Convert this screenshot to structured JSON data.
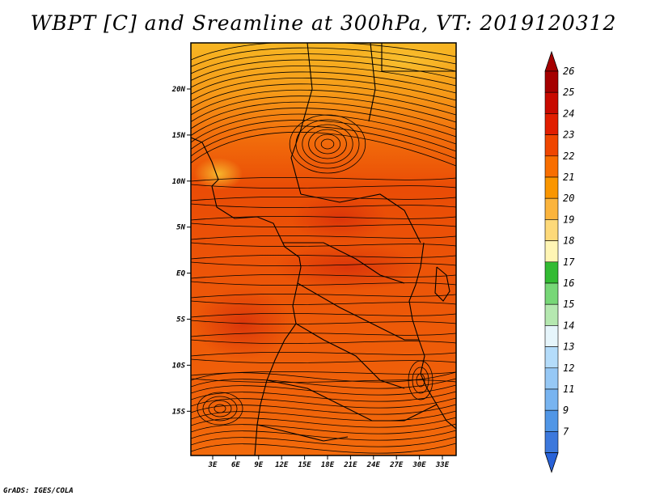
{
  "title": "WBPT [C] and Sreamline at 300hPa, VT: 2019120312",
  "credit": "GrADS: IGES/COLA",
  "lat_ticks": [
    "20N",
    "15N",
    "10N",
    "5N",
    "EQ",
    "5S",
    "10S",
    "15S"
  ],
  "lon_ticks": [
    "3E",
    "6E",
    "9E",
    "12E",
    "15E",
    "18E",
    "21E",
    "24E",
    "27E",
    "30E",
    "33E"
  ],
  "colorbar": {
    "levels": [
      {
        "label": "26",
        "color": "#a50000"
      },
      {
        "label": "25",
        "color": "#c80a00"
      },
      {
        "label": "24",
        "color": "#e11e00"
      },
      {
        "label": "23",
        "color": "#ef4600"
      },
      {
        "label": "22",
        "color": "#f86e00"
      },
      {
        "label": "21",
        "color": "#fa9600"
      },
      {
        "label": "20",
        "color": "#fbb43c"
      },
      {
        "label": "19",
        "color": "#fdd979"
      },
      {
        "label": "18",
        "color": "#fff5b4"
      },
      {
        "label": "17",
        "color": "#33bb33"
      },
      {
        "label": "16",
        "color": "#77d777"
      },
      {
        "label": "15",
        "color": "#b5e8b0"
      },
      {
        "label": "14",
        "color": "#e6f5fb"
      },
      {
        "label": "13",
        "color": "#b4dcfa"
      },
      {
        "label": "12",
        "color": "#96c8f5"
      },
      {
        "label": "11",
        "color": "#78b4f0"
      },
      {
        "label": "9",
        "color": "#5096e6"
      },
      {
        "label": "7",
        "color": "#3c78dc"
      }
    ],
    "bottom_color": "#2862d8"
  },
  "colors": {
    "field_dark": "#e23c05",
    "field_mid": "#f05f0a",
    "field_light": "#f6b020",
    "outline": "#000000"
  }
}
